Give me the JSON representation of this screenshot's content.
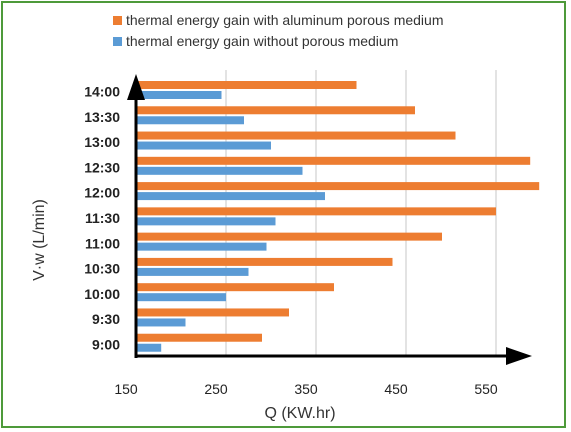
{
  "chart_data": {
    "type": "bar",
    "orientation": "horizontal",
    "categories": [
      "9:00",
      "9:30",
      "10:00",
      "10:30",
      "11:00",
      "11:30",
      "12:00",
      "12:30",
      "13:00",
      "13:30",
      "14:00"
    ],
    "series": [
      {
        "name": "thermal energy gain with aluminum  porous medium",
        "color": "#ed7d31",
        "values": [
          290,
          320,
          370,
          435,
          490,
          550,
          598,
          588,
          505,
          460,
          395
        ]
      },
      {
        "name": "thermal energy gain without porous medium",
        "color": "#5b9bd5",
        "values": [
          178,
          205,
          250,
          275,
          295,
          305,
          360,
          335,
          300,
          270,
          245
        ]
      }
    ],
    "xlabel": "Q (KW.hr)",
    "ylabel": "V·w (L/min)",
    "xticks": [
      "150",
      "250",
      "350",
      "450",
      "550"
    ],
    "xlim": [
      150,
      600
    ],
    "grid": "vertical",
    "legend_position": "top-left"
  }
}
